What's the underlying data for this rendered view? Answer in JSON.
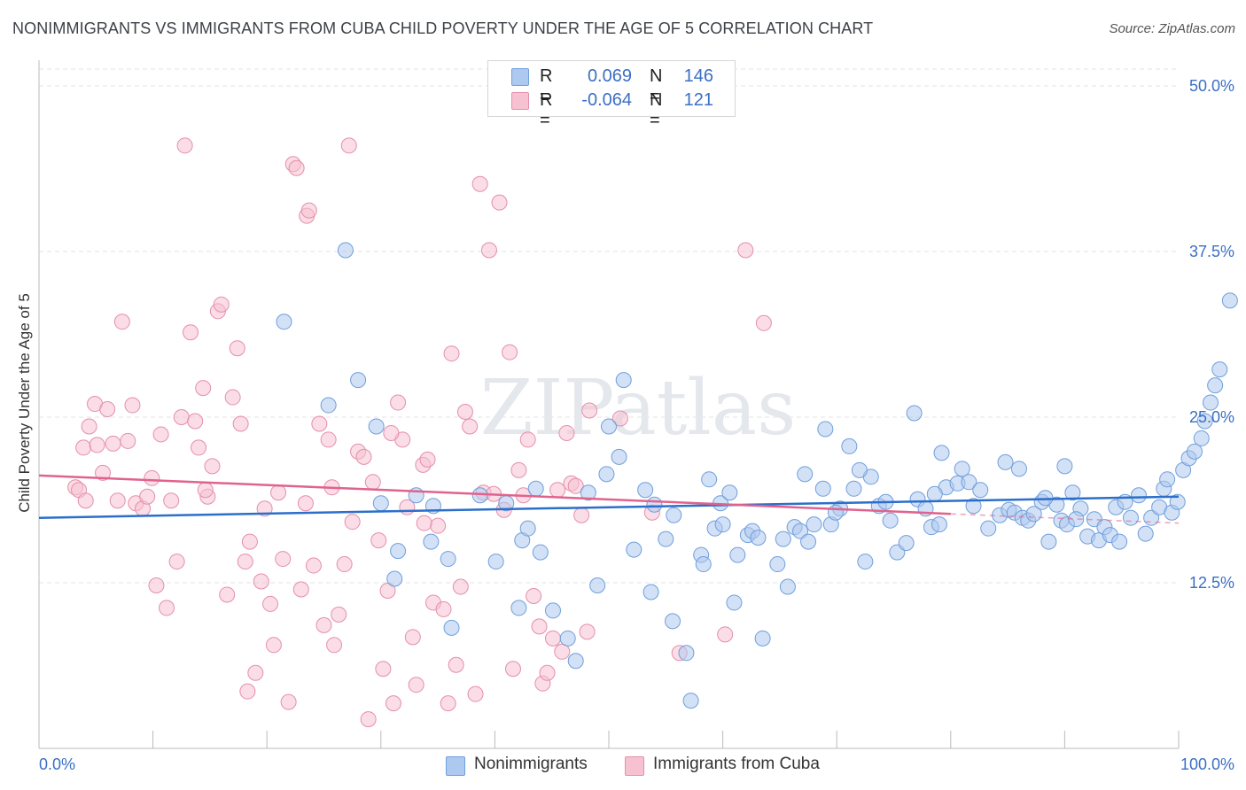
{
  "title": "NONIMMIGRANTS VS IMMIGRANTS FROM CUBA CHILD POVERTY UNDER THE AGE OF 5 CORRELATION CHART",
  "source": "Source: ZipAtlas.com",
  "watermark": "ZIPatlas",
  "legend": {
    "r_label": "R =",
    "n_label": "N =",
    "rows": [
      {
        "r": "0.069",
        "n": "146",
        "fill": "#aec9ef",
        "stroke": "#6f9fdc"
      },
      {
        "r": "-0.064",
        "n": "121",
        "fill": "#f6c1d1",
        "stroke": "#e58fab"
      }
    ]
  },
  "colors": {
    "blue_line": "#2b6fcb",
    "pink_line": "#e0638d",
    "blue_fill": "#aec9ef",
    "pink_fill": "#f6c1d1",
    "tick_color": "#3a6fc4",
    "grid": "#e3e3e3"
  },
  "chart_data": {
    "type": "scatter",
    "ylabel": "Child Poverty Under the Age of 5",
    "xlim": [
      0,
      100
    ],
    "ylim": [
      0,
      50
    ],
    "y_ticks": [
      12.5,
      25.0,
      37.5,
      50.0
    ],
    "y_tick_labels": [
      "12.5%",
      "25.0%",
      "37.5%",
      "50.0%"
    ],
    "x_tick_labels": [
      "0.0%",
      "100.0%"
    ],
    "grid": true,
    "legend_position": "top-center",
    "series": [
      {
        "name": "Nonimmigrants",
        "trend": [
          [
            0,
            17.4
          ],
          [
            100,
            19.0
          ]
        ],
        "points": [
          [
            26.9,
            37.6
          ],
          [
            21.5,
            32.2
          ],
          [
            25.4,
            25.9
          ],
          [
            28.0,
            27.8
          ],
          [
            29.6,
            24.3
          ],
          [
            30.0,
            18.5
          ],
          [
            31.2,
            12.8
          ],
          [
            31.5,
            14.9
          ],
          [
            33.1,
            19.1
          ],
          [
            34.4,
            15.6
          ],
          [
            34.6,
            18.3
          ],
          [
            35.9,
            14.3
          ],
          [
            36.2,
            9.1
          ],
          [
            38.7,
            19.1
          ],
          [
            40.1,
            14.1
          ],
          [
            41.0,
            18.5
          ],
          [
            42.1,
            10.6
          ],
          [
            42.4,
            15.7
          ],
          [
            42.9,
            16.6
          ],
          [
            43.6,
            19.6
          ],
          [
            44.0,
            14.8
          ],
          [
            45.1,
            10.4
          ],
          [
            46.4,
            8.3
          ],
          [
            47.1,
            6.6
          ],
          [
            48.2,
            19.3
          ],
          [
            49.0,
            12.3
          ],
          [
            49.8,
            20.7
          ],
          [
            50.0,
            24.3
          ],
          [
            50.9,
            22.0
          ],
          [
            51.3,
            27.8
          ],
          [
            52.2,
            15.0
          ],
          [
            53.2,
            19.5
          ],
          [
            54.0,
            18.4
          ],
          [
            55.0,
            15.8
          ],
          [
            55.7,
            17.6
          ],
          [
            56.8,
            7.2
          ],
          [
            57.2,
            3.6
          ],
          [
            58.1,
            14.6
          ],
          [
            58.8,
            20.3
          ],
          [
            59.3,
            16.6
          ],
          [
            59.8,
            18.5
          ],
          [
            60.6,
            19.3
          ],
          [
            61.3,
            14.6
          ],
          [
            62.2,
            16.1
          ],
          [
            62.6,
            16.4
          ],
          [
            63.1,
            15.9
          ],
          [
            64.8,
            13.9
          ],
          [
            65.3,
            15.8
          ],
          [
            65.7,
            12.2
          ],
          [
            66.3,
            16.7
          ],
          [
            66.8,
            16.4
          ],
          [
            67.5,
            15.6
          ],
          [
            68.0,
            16.9
          ],
          [
            68.8,
            19.6
          ],
          [
            69.0,
            24.1
          ],
          [
            69.5,
            16.9
          ],
          [
            70.3,
            18.1
          ],
          [
            71.1,
            22.8
          ],
          [
            71.5,
            19.6
          ],
          [
            72.5,
            14.1
          ],
          [
            73.0,
            20.5
          ],
          [
            73.7,
            18.3
          ],
          [
            74.3,
            18.6
          ],
          [
            74.7,
            17.2
          ],
          [
            75.3,
            14.8
          ],
          [
            76.1,
            15.5
          ],
          [
            77.1,
            18.8
          ],
          [
            77.8,
            18.1
          ],
          [
            78.3,
            16.7
          ],
          [
            79.0,
            16.9
          ],
          [
            79.6,
            19.7
          ],
          [
            80.6,
            20.0
          ],
          [
            81.0,
            21.1
          ],
          [
            81.6,
            20.1
          ],
          [
            82.0,
            18.3
          ],
          [
            82.6,
            19.5
          ],
          [
            83.3,
            16.6
          ],
          [
            84.3,
            17.6
          ],
          [
            85.1,
            18.0
          ],
          [
            85.6,
            17.8
          ],
          [
            86.3,
            17.4
          ],
          [
            86.8,
            17.2
          ],
          [
            87.3,
            17.7
          ],
          [
            88.0,
            18.6
          ],
          [
            88.6,
            15.6
          ],
          [
            89.3,
            18.4
          ],
          [
            89.7,
            17.2
          ],
          [
            90.2,
            16.9
          ],
          [
            90.7,
            19.3
          ],
          [
            91.4,
            18.1
          ],
          [
            92.0,
            16.0
          ],
          [
            92.6,
            17.3
          ],
          [
            93.0,
            15.7
          ],
          [
            93.5,
            16.7
          ],
          [
            94.0,
            16.1
          ],
          [
            94.5,
            18.2
          ],
          [
            94.8,
            15.6
          ],
          [
            95.3,
            18.6
          ],
          [
            95.8,
            17.4
          ],
          [
            96.5,
            19.1
          ],
          [
            97.1,
            16.2
          ],
          [
            97.6,
            17.4
          ],
          [
            98.3,
            18.2
          ],
          [
            98.7,
            19.6
          ],
          [
            99.0,
            20.3
          ],
          [
            99.4,
            17.8
          ],
          [
            99.9,
            18.6
          ],
          [
            100.4,
            21.0
          ],
          [
            100.9,
            21.9
          ],
          [
            101.4,
            22.4
          ],
          [
            102.0,
            23.4
          ],
          [
            102.3,
            24.7
          ],
          [
            102.8,
            26.1
          ],
          [
            103.2,
            27.4
          ],
          [
            103.6,
            28.6
          ],
          [
            104.5,
            33.8
          ],
          [
            58.3,
            13.9
          ],
          [
            61.0,
            11.0
          ],
          [
            63.5,
            8.3
          ],
          [
            55.6,
            9.6
          ],
          [
            53.7,
            11.8
          ],
          [
            67.2,
            20.7
          ],
          [
            69.9,
            17.8
          ],
          [
            72.0,
            21.0
          ],
          [
            76.8,
            25.3
          ],
          [
            79.2,
            22.3
          ],
          [
            84.8,
            21.6
          ],
          [
            86.0,
            21.1
          ],
          [
            88.3,
            18.9
          ],
          [
            90.0,
            21.3
          ],
          [
            91.0,
            17.3
          ],
          [
            78.6,
            19.2
          ],
          [
            60.0,
            16.9
          ]
        ]
      },
      {
        "name": "Immigrants from Cuba",
        "trend": [
          [
            0,
            20.6
          ],
          [
            80,
            17.7
          ]
        ],
        "trend_dashed": [
          [
            80,
            17.7
          ],
          [
            100,
            17.0
          ]
        ],
        "points": [
          [
            3.2,
            19.7
          ],
          [
            3.5,
            19.5
          ],
          [
            3.9,
            22.7
          ],
          [
            4.1,
            18.7
          ],
          [
            4.4,
            24.3
          ],
          [
            4.9,
            26.0
          ],
          [
            5.1,
            22.9
          ],
          [
            5.6,
            20.8
          ],
          [
            6.0,
            25.6
          ],
          [
            6.5,
            23.0
          ],
          [
            6.9,
            18.7
          ],
          [
            7.3,
            32.2
          ],
          [
            7.8,
            23.2
          ],
          [
            8.2,
            25.9
          ],
          [
            8.5,
            18.5
          ],
          [
            9.1,
            18.1
          ],
          [
            9.5,
            19.0
          ],
          [
            9.9,
            20.4
          ],
          [
            10.3,
            12.3
          ],
          [
            10.7,
            23.7
          ],
          [
            11.2,
            10.6
          ],
          [
            11.6,
            18.7
          ],
          [
            12.1,
            14.1
          ],
          [
            12.5,
            25.0
          ],
          [
            12.8,
            45.5
          ],
          [
            13.3,
            31.4
          ],
          [
            13.7,
            24.7
          ],
          [
            14.0,
            22.7
          ],
          [
            14.4,
            27.2
          ],
          [
            14.8,
            19.0
          ],
          [
            15.2,
            21.3
          ],
          [
            15.7,
            33.0
          ],
          [
            16.0,
            33.5
          ],
          [
            16.5,
            11.6
          ],
          [
            17.0,
            26.5
          ],
          [
            17.4,
            30.2
          ],
          [
            17.7,
            24.5
          ],
          [
            18.1,
            14.1
          ],
          [
            18.5,
            15.6
          ],
          [
            19.0,
            5.7
          ],
          [
            19.5,
            12.6
          ],
          [
            19.8,
            18.1
          ],
          [
            20.3,
            10.9
          ],
          [
            20.6,
            7.8
          ],
          [
            21.0,
            19.3
          ],
          [
            21.4,
            14.3
          ],
          [
            21.9,
            3.5
          ],
          [
            22.3,
            44.1
          ],
          [
            22.6,
            43.8
          ],
          [
            23.0,
            12.0
          ],
          [
            23.5,
            40.2
          ],
          [
            23.7,
            40.6
          ],
          [
            24.1,
            13.8
          ],
          [
            24.6,
            24.5
          ],
          [
            25.0,
            9.3
          ],
          [
            25.4,
            23.3
          ],
          [
            25.9,
            7.8
          ],
          [
            26.3,
            10.1
          ],
          [
            26.8,
            13.9
          ],
          [
            27.2,
            45.5
          ],
          [
            27.5,
            17.1
          ],
          [
            28.0,
            22.4
          ],
          [
            28.5,
            22.0
          ],
          [
            28.9,
            2.2
          ],
          [
            29.3,
            20.1
          ],
          [
            29.8,
            15.7
          ],
          [
            30.2,
            6.0
          ],
          [
            30.6,
            11.9
          ],
          [
            31.1,
            3.4
          ],
          [
            31.5,
            26.1
          ],
          [
            31.9,
            23.3
          ],
          [
            32.3,
            18.2
          ],
          [
            32.8,
            8.4
          ],
          [
            33.1,
            4.8
          ],
          [
            33.7,
            21.4
          ],
          [
            34.1,
            21.8
          ],
          [
            34.6,
            11.0
          ],
          [
            35.0,
            16.8
          ],
          [
            35.5,
            10.5
          ],
          [
            35.9,
            3.4
          ],
          [
            36.2,
            29.8
          ],
          [
            36.6,
            6.3
          ],
          [
            37.0,
            12.2
          ],
          [
            37.4,
            25.4
          ],
          [
            37.8,
            24.3
          ],
          [
            38.3,
            4.1
          ],
          [
            38.7,
            42.6
          ],
          [
            39.0,
            19.3
          ],
          [
            39.5,
            37.6
          ],
          [
            39.9,
            19.2
          ],
          [
            40.4,
            41.2
          ],
          [
            40.8,
            18.0
          ],
          [
            41.3,
            29.9
          ],
          [
            41.6,
            6.0
          ],
          [
            42.1,
            21.0
          ],
          [
            42.5,
            19.1
          ],
          [
            42.9,
            23.3
          ],
          [
            43.4,
            11.5
          ],
          [
            43.9,
            9.2
          ],
          [
            44.2,
            4.9
          ],
          [
            44.6,
            5.7
          ],
          [
            45.1,
            8.3
          ],
          [
            45.5,
            19.5
          ],
          [
            45.9,
            7.3
          ],
          [
            46.3,
            23.8
          ],
          [
            46.7,
            20.0
          ],
          [
            47.1,
            19.8
          ],
          [
            47.6,
            17.6
          ],
          [
            48.1,
            8.8
          ],
          [
            48.3,
            25.5
          ],
          [
            51.0,
            24.9
          ],
          [
            53.8,
            17.8
          ],
          [
            56.2,
            7.2
          ],
          [
            60.2,
            8.6
          ],
          [
            62.0,
            37.6
          ],
          [
            63.6,
            32.1
          ],
          [
            18.3,
            4.3
          ],
          [
            25.7,
            19.7
          ],
          [
            30.9,
            23.8
          ],
          [
            33.8,
            17.0
          ],
          [
            23.4,
            18.5
          ],
          [
            14.6,
            19.5
          ]
        ]
      }
    ]
  }
}
